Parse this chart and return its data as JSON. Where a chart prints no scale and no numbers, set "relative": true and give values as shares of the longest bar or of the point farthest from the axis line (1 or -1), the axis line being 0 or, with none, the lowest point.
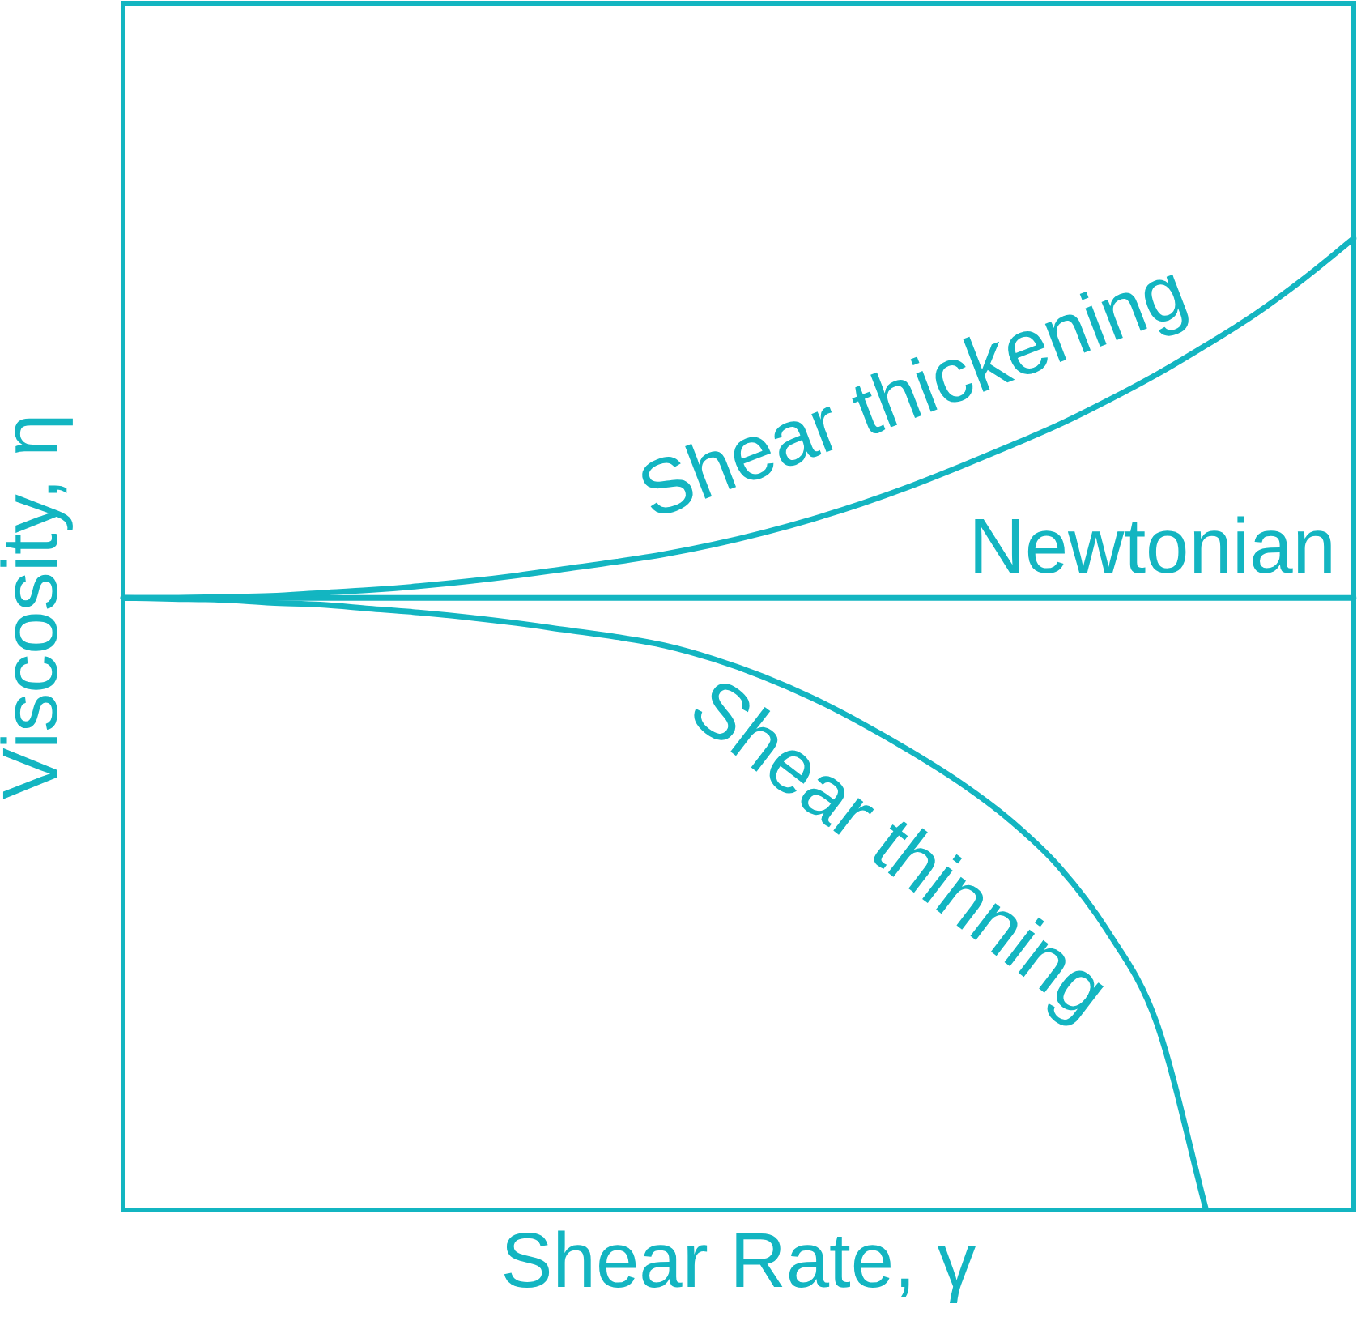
{
  "chart_data": {
    "type": "line",
    "xlabel": "Shear Rate, γ",
    "ylabel": "Viscosity, η",
    "categories": [
      null,
      null,
      null,
      null,
      null,
      null,
      null,
      null,
      null,
      null,
      null,
      null,
      null,
      null,
      null,
      null,
      null,
      null,
      null,
      null,
      null,
      null,
      null,
      null,
      null,
      null
    ],
    "relative": true,
    "series": [
      {
        "name": "Shear thickening",
        "color": "#13b5c1",
        "values": [
          0.63,
          0.63,
          0.631,
          0.632,
          0.635,
          0.638,
          0.642,
          0.647,
          0.653,
          0.66,
          0.667,
          0.675,
          0.685,
          0.697,
          0.711,
          0.727,
          0.745,
          0.765,
          0.786,
          0.808,
          0.833,
          0.86,
          0.89,
          0.922,
          0.959,
          1.0
        ]
      },
      {
        "name": "Newtonian",
        "color": "#13b5c1",
        "values": [
          0.63,
          0.63,
          0.63,
          0.63,
          0.63,
          0.63,
          0.63,
          0.63,
          0.63,
          0.63,
          0.63,
          0.63,
          0.63,
          0.63,
          0.63,
          0.63,
          0.63,
          0.63,
          0.63,
          0.63,
          0.63,
          0.63,
          0.63,
          0.63,
          0.63,
          0.63
        ]
      },
      {
        "name": "Shear thinning",
        "color": "#13b5c1",
        "values": [
          0.63,
          0.629,
          0.628,
          0.625,
          0.623,
          0.619,
          0.615,
          0.61,
          0.604,
          0.597,
          0.59,
          0.581,
          0.567,
          0.549,
          0.527,
          0.501,
          0.472,
          0.44,
          0.402,
          0.354,
          0.287,
          0.192,
          0.0,
          null,
          null,
          null
        ]
      }
    ],
    "grid": false,
    "legend": false,
    "tick_labels": false,
    "marker": "none",
    "line_style": "solid"
  }
}
